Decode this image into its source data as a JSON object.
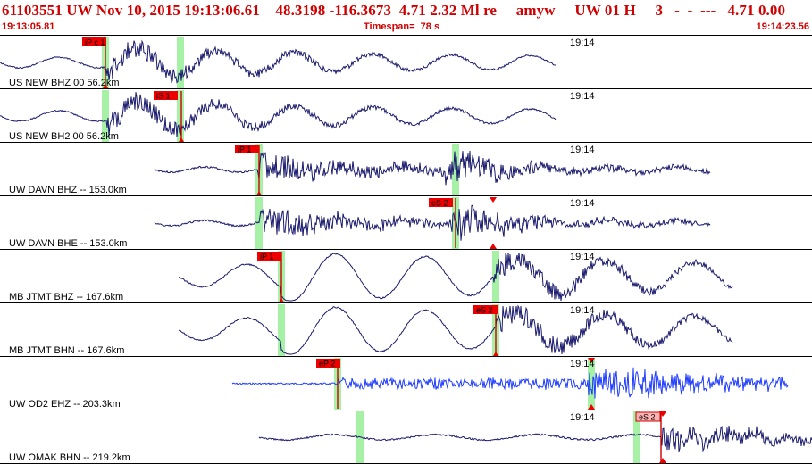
{
  "header": {
    "title": "61103551 UW Nov 10, 2015 19:13:06.61    48.3198 -116.3673  4.71 2.32 Ml re     amyw     UW 01 H     3   -  -  ---   4.71 0.00",
    "start_time": "19:13:05.81",
    "timespan": "Timespan=  78 s",
    "end_time": "19:14:23.56"
  },
  "colors": {
    "trace": "#1a1a6e",
    "trace_highlight": "#1f3cff",
    "pick_flag": "#ee0000",
    "pick_flag_light": "#ffb3b3",
    "window_band": "#9df09d",
    "header_text": "#d00000"
  },
  "traces": [
    {
      "label": "US NEW BHZ 00 56.2km",
      "time_mark": "19:14",
      "picks": [
        {
          "label": "iP c 1",
          "style": "red"
        }
      ],
      "highlight": false
    },
    {
      "label": "US NEW BH2 00 56.2km",
      "time_mark": "19:14",
      "picks": [
        {
          "label": "iS 1",
          "style": "red"
        }
      ],
      "highlight": false
    },
    {
      "label": "UW DAVN BHZ -- 153.0km",
      "time_mark": "19:14",
      "picks": [
        {
          "label": "iP 1",
          "style": "red"
        }
      ],
      "highlight": false
    },
    {
      "label": "UW DAVN BHE -- 153.0km",
      "time_mark": "19:14",
      "picks": [
        {
          "label": "eS 2",
          "style": "red"
        }
      ],
      "highlight": false
    },
    {
      "label": "MB JTMT BHZ -- 167.6km",
      "time_mark": "19:14",
      "picks": [
        {
          "label": "iP 1",
          "style": "red"
        }
      ],
      "highlight": false
    },
    {
      "label": "MB JTMT BHN -- 167.6km",
      "time_mark": "19:14",
      "picks": [
        {
          "label": "eS 2",
          "style": "red"
        }
      ],
      "highlight": false
    },
    {
      "label": "UW OD2 EHZ -- 203.3km",
      "time_mark": "19:14",
      "picks": [
        {
          "label": "eP 2",
          "style": "red"
        }
      ],
      "highlight": true
    },
    {
      "label": "UW OMAK BHN -- 219.2km",
      "time_mark": "19:14",
      "picks": [
        {
          "label": "eS 2",
          "style": "light"
        }
      ],
      "highlight": false
    }
  ]
}
